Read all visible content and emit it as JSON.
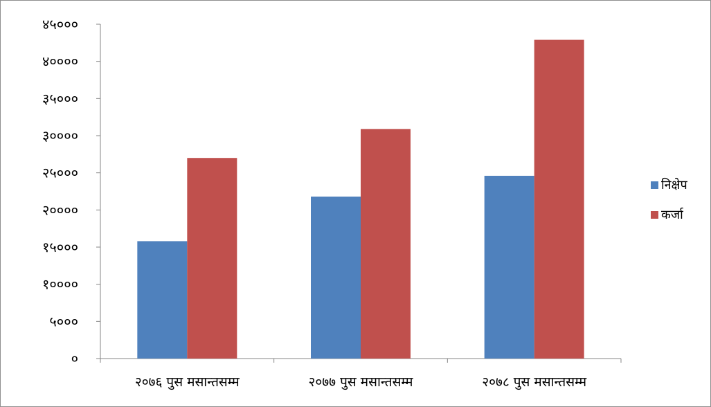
{
  "chart_data": {
    "type": "bar",
    "categories": [
      "२०७६ पुस मसान्तसम्म",
      "२०७७ पुस मसान्तसम्म",
      "२०७८ पुस मसान्तसम्म"
    ],
    "series": [
      {
        "name": "निक्षेप",
        "color": "#4f81bd",
        "values": [
          15800,
          21800,
          24600
        ]
      },
      {
        "name": "कर्जा",
        "color": "#c0504d",
        "values": [
          27000,
          30900,
          42900
        ]
      }
    ],
    "ylim": [
      0,
      45000
    ],
    "yticks": [
      {
        "value": 0,
        "label": "०"
      },
      {
        "value": 5000,
        "label": "५०००"
      },
      {
        "value": 10000,
        "label": "१००००"
      },
      {
        "value": 15000,
        "label": "१५०००"
      },
      {
        "value": 20000,
        "label": "२००००"
      },
      {
        "value": 25000,
        "label": "२५०००"
      },
      {
        "value": 30000,
        "label": "३००००"
      },
      {
        "value": 35000,
        "label": "३५०००"
      },
      {
        "value": 40000,
        "label": "४००००"
      },
      {
        "value": 45000,
        "label": "४५०००"
      }
    ],
    "grid": false,
    "legend": "right",
    "title": "",
    "xlabel": "",
    "ylabel": ""
  }
}
